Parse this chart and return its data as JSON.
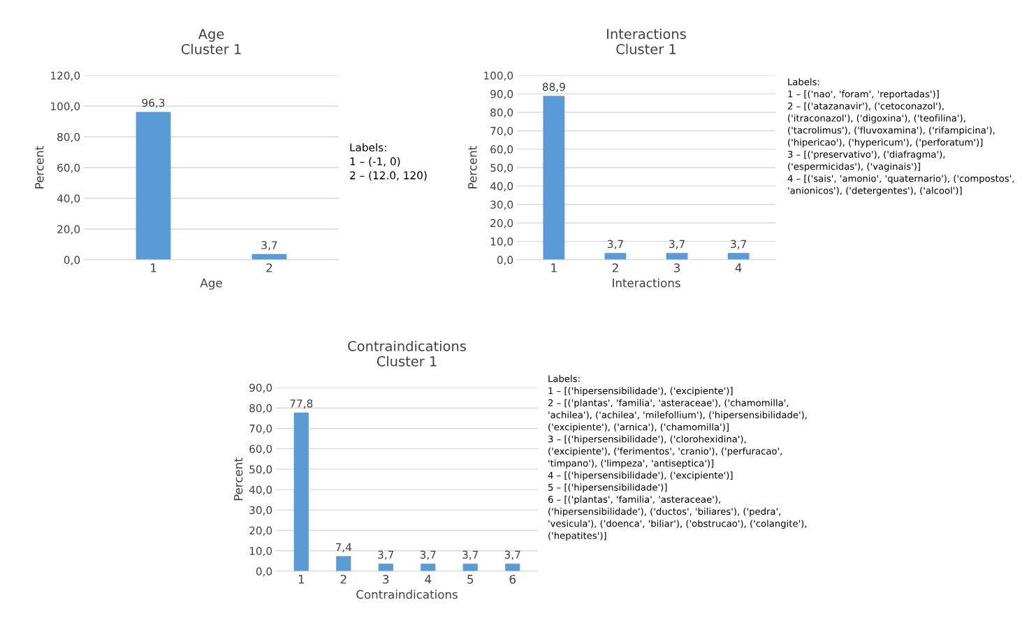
{
  "chart_data": [
    {
      "type": "bar",
      "title": "Age\nCluster 1",
      "xlabel": "Age",
      "ylabel": "Percent",
      "categories": [
        "1",
        "2"
      ],
      "values": [
        96.3,
        3.7
      ],
      "color": "#5b9bd5",
      "value_labels": [
        "96,3",
        "3,7"
      ],
      "ylim": [
        0,
        120
      ],
      "yticks": [
        {
          "value": 0,
          "label": "0,0"
        },
        {
          "value": 20,
          "label": "20,0"
        },
        {
          "value": 40,
          "label": "40,0"
        },
        {
          "value": 60,
          "label": "60,0"
        },
        {
          "value": 80,
          "label": "80,0"
        },
        {
          "value": 100,
          "label": "100,0"
        },
        {
          "value": 120,
          "label": "120,0"
        }
      ],
      "grid": "y",
      "annotations": [
        "Labels:\n1 – (-1, 0)\n2 – (12.0, 120)"
      ]
    },
    {
      "type": "bar",
      "title": "Interactions\nCluster 1",
      "xlabel": "Interactions",
      "ylabel": "Percent",
      "categories": [
        "1",
        "2",
        "3",
        "4"
      ],
      "values": [
        88.9,
        3.7,
        3.7,
        3.7
      ],
      "color": "#5b9bd5",
      "value_labels": [
        "88,9",
        "3,7",
        "3,7",
        "3,7"
      ],
      "ylim": [
        0,
        100
      ],
      "yticks": [
        {
          "value": 0,
          "label": "0,0"
        },
        {
          "value": 10,
          "label": "10,0"
        },
        {
          "value": 20,
          "label": "20,0"
        },
        {
          "value": 30,
          "label": "30,0"
        },
        {
          "value": 40,
          "label": "40,0"
        },
        {
          "value": 50,
          "label": "50,0"
        },
        {
          "value": 60,
          "label": "60,0"
        },
        {
          "value": 70,
          "label": "70,0"
        },
        {
          "value": 80,
          "label": "80,0"
        },
        {
          "value": 90,
          "label": "90,0"
        },
        {
          "value": 100,
          "label": "100,0"
        }
      ],
      "grid": "y",
      "annotations": [
        "Labels:\n1 – [('nao', 'foram', 'reportadas')]\n2 – [('atazanavir'), ('cetoconazol'),\n('itraconazol'), ('digoxina'), ('teofilina'),\n('tacrolimus'), ('fluvoxamina'), ('rifampicina'),\n('hipericao'), ('hypericum'), ('perforatum')]\n3 – [('preservativo'), ('diafragma'),\n('espermicidas'), ('vaginais')]\n4 – [('sais', 'amonio', 'quaternario'), ('compostos',\n'anionicos'), ('detergentes'), ('alcool')]"
      ]
    },
    {
      "type": "bar",
      "title": "Contraindications\nCluster 1",
      "xlabel": "Contraindications",
      "ylabel": "Percent",
      "categories": [
        "1",
        "2",
        "3",
        "4",
        "5",
        "6"
      ],
      "values": [
        77.8,
        7.4,
        3.7,
        3.7,
        3.7,
        3.7
      ],
      "color": "#5b9bd5",
      "value_labels": [
        "77,8",
        "7,4",
        "3,7",
        "3,7",
        "3,7",
        "3,7"
      ],
      "ylim": [
        0,
        90
      ],
      "yticks": [
        {
          "value": 0,
          "label": "0,0"
        },
        {
          "value": 10,
          "label": "10,0"
        },
        {
          "value": 20,
          "label": "20,0"
        },
        {
          "value": 30,
          "label": "30,0"
        },
        {
          "value": 40,
          "label": "40,0"
        },
        {
          "value": 50,
          "label": "50,0"
        },
        {
          "value": 60,
          "label": "60,0"
        },
        {
          "value": 70,
          "label": "70,0"
        },
        {
          "value": 80,
          "label": "80,0"
        },
        {
          "value": 90,
          "label": "90,0"
        }
      ],
      "grid": "y",
      "annotations": [
        "Labels:\n1 – [('hipersensibilidade'), ('excipiente')]\n2 – [('plantas', 'familia', 'asteraceae'), ('chamomilla',\n'achilea'), ('achilea', 'milefollium'), ('hipersensibilidade'),\n('excipiente'), ('arnica'), ('chamomilla')]\n3 – [('hipersensibilidade'), ('clorohexidina'),\n('excipiente'), ('ferimentos', 'cranio'), ('perfuracao',\n'timpano'), ('limpeza', 'antiseptica')]\n4 – [('hipersensibilidade'), ('excipiente')]\n5 – [('hipersensibilidade')]\n6 – [('plantas', 'familia', 'asteraceae'),\n('hipersensibilidade'), ('ductos', 'biliares'), ('pedra',\n'vesicula'), ('doenca', 'biliar'), ('obstrucao'), ('colangite'),\n('hepatites')]"
      ]
    }
  ]
}
